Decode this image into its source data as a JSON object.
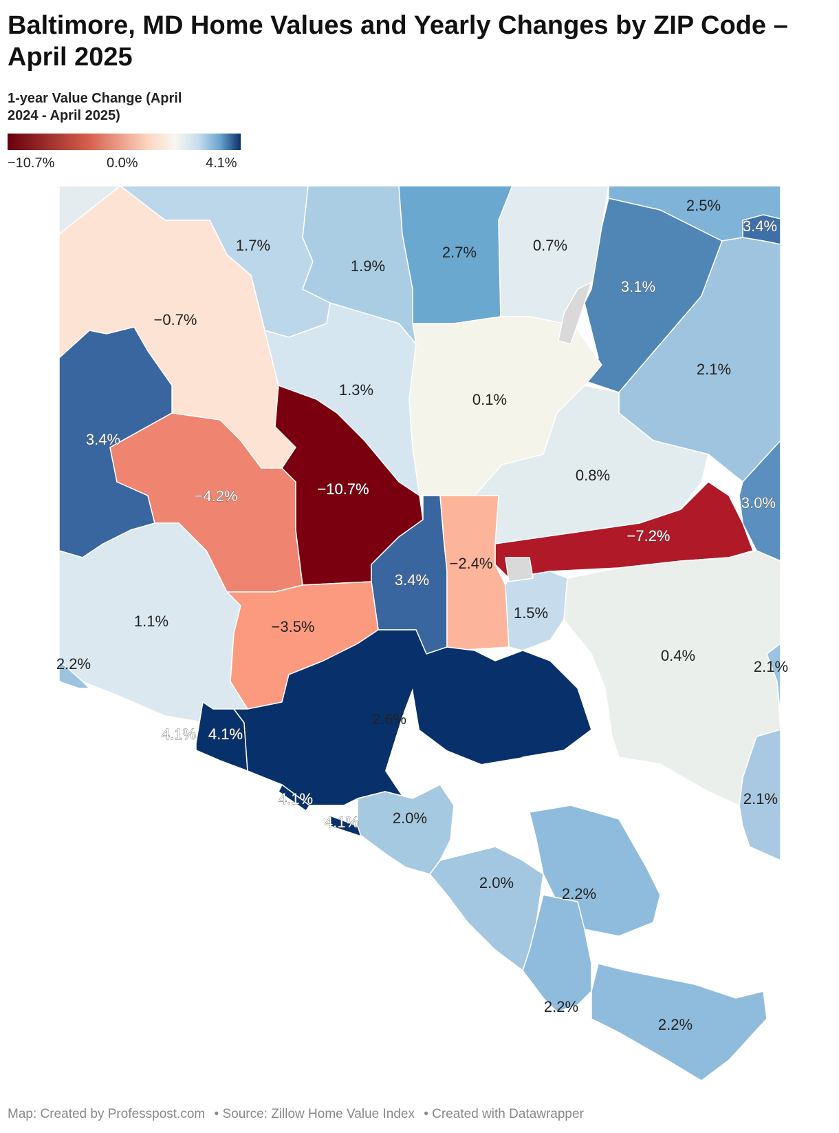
{
  "title": "Baltimore, MD Home Values and Yearly Changes by ZIP Code – April 2025",
  "legend": {
    "title": "1-year Value Change (April 2024 - April 2025)",
    "min_label": "−10.7%",
    "mid_label": "0.0%",
    "max_label": "4.1%",
    "colors": {
      "min": "#67000d",
      "mid": "#f7f7f0",
      "max": "#08306b"
    }
  },
  "regions": [
    {
      "name": "north-west-upper",
      "value": "1.7%",
      "color": "#bcd7e9"
    },
    {
      "name": "north-central-left",
      "value": "1.9%",
      "color": "#abcde4"
    },
    {
      "name": "north-central",
      "value": "2.7%",
      "color": "#6aa8d0"
    },
    {
      "name": "north-central-right",
      "value": "0.7%",
      "color": "#e2ebf0"
    },
    {
      "name": "north-east",
      "value": "3.1%",
      "color": "#4f86b6"
    },
    {
      "name": "north-east-corner-a",
      "value": "2.5%",
      "color": "#7fb3d8"
    },
    {
      "name": "north-east-corner-b",
      "value": "3.4%",
      "color": "#3d6fa8"
    },
    {
      "name": "north-west",
      "value": "−0.7%",
      "color": "#fce3d4"
    },
    {
      "name": "east-upper",
      "value": "2.1%",
      "color": "#9fc4df"
    },
    {
      "name": "central-north-left",
      "value": "1.3%",
      "color": "#d5e6f1"
    },
    {
      "name": "central-north",
      "value": "0.1%",
      "color": "#f4f4ea"
    },
    {
      "name": "west",
      "value": "3.4%",
      "color": "#3a66a0"
    },
    {
      "name": "west-central",
      "value": "−4.2%",
      "color": "#ef8570"
    },
    {
      "name": "central-west",
      "value": "−10.7%",
      "color": "#7a0010"
    },
    {
      "name": "east-central",
      "value": "0.8%",
      "color": "#e2ecef"
    },
    {
      "name": "east-edge",
      "value": "3.0%",
      "color": "#5a8fbf"
    },
    {
      "name": "east-strip",
      "value": "−7.2%",
      "color": "#b01a28"
    },
    {
      "name": "central-corridor",
      "value": "3.4%",
      "color": "#3a66a0"
    },
    {
      "name": "central-east-strip",
      "value": "−2.4%",
      "color": "#fcb59b"
    },
    {
      "name": "harbor-east",
      "value": "1.5%",
      "color": "#c6dcec"
    },
    {
      "name": "south-west",
      "value": "1.1%",
      "color": "#dbe8f0"
    },
    {
      "name": "south-central-west",
      "value": "−3.5%",
      "color": "#fc9a7f"
    },
    {
      "name": "south-east",
      "value": "0.4%",
      "color": "#ebefec"
    },
    {
      "name": "west-edge",
      "value": "2.2%",
      "color": "#9bc2df"
    },
    {
      "name": "east-edge-lower",
      "value": "2.1%",
      "color": "#9bc2df"
    },
    {
      "name": "east-edge-bottom",
      "value": "2.1%",
      "color": "#a8c9e1"
    },
    {
      "name": "south-west-small",
      "value": "4.1%",
      "color": "#08306b"
    },
    {
      "name": "south-west-small-label",
      "value": "4.1%",
      "color": "#08306b"
    },
    {
      "name": "harbor-south",
      "value": "2.6%",
      "color": "#74aed4"
    },
    {
      "name": "south-sliver-a",
      "value": "4.1%",
      "color": "#08306b"
    },
    {
      "name": "south-sliver-b",
      "value": "4.1%",
      "color": "#08306b"
    },
    {
      "name": "south-central",
      "value": "2.0%",
      "color": "#a6c9e2"
    },
    {
      "name": "south-lower",
      "value": "2.0%",
      "color": "#a3c7e1"
    },
    {
      "name": "south-peninsula",
      "value": "2.2%",
      "color": "#8fbcdc"
    },
    {
      "name": "south-bottom-left",
      "value": "2.2%",
      "color": "#8fbcdc"
    },
    {
      "name": "south-bottom-right",
      "value": "2.2%",
      "color": "#8fbcdc"
    }
  ],
  "footer": {
    "credit": "Map: Created by Professpost.com",
    "source": "• Source: Zillow Home Value Index",
    "tool": "• Created with Datawrapper"
  }
}
